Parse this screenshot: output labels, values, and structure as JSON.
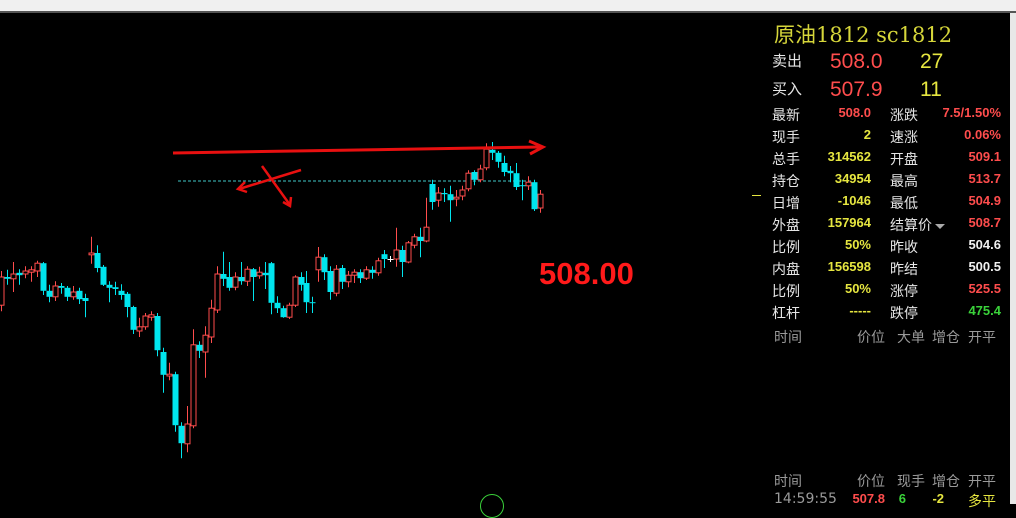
{
  "colors": {
    "up": "#ff4d4d",
    "down": "#00e5ee",
    "neutral": "#ffffff",
    "annotation": "#e81010",
    "dashed": "#40c8c8"
  },
  "chart": {
    "current_price_label": "508.00",
    "reference_price": 508.0,
    "candles_ohlc": [
      [
        487.3,
        493.0,
        486.3,
        492.0
      ],
      [
        492.0,
        493.2,
        490.7,
        491.7
      ],
      [
        491.7,
        494.5,
        489.5,
        492.5
      ],
      [
        492.7,
        493.3,
        490.7,
        492.3
      ],
      [
        492.5,
        493.8,
        491.8,
        493.0
      ],
      [
        492.8,
        493.8,
        491.2,
        493.2
      ],
      [
        493.0,
        494.7,
        492.0,
        494.3
      ],
      [
        494.3,
        494.5,
        489.0,
        489.7
      ],
      [
        489.7,
        490.7,
        487.8,
        488.7
      ],
      [
        488.7,
        491.3,
        488.0,
        490.5
      ],
      [
        490.5,
        491.0,
        489.2,
        490.2
      ],
      [
        490.2,
        490.5,
        488.0,
        488.7
      ],
      [
        488.7,
        490.5,
        488.2,
        489.5
      ],
      [
        489.7,
        490.2,
        487.5,
        488.3
      ],
      [
        488.5,
        489.2,
        485.3,
        488.0
      ],
      [
        495.7,
        498.7,
        494.2,
        496.0
      ],
      [
        496.0,
        497.3,
        492.8,
        493.5
      ],
      [
        493.7,
        494.0,
        490.5,
        490.7
      ],
      [
        490.7,
        491.3,
        487.8,
        490.2
      ],
      [
        490.3,
        491.2,
        489.0,
        490.0
      ],
      [
        489.7,
        490.8,
        488.2,
        489.0
      ],
      [
        489.2,
        489.5,
        485.3,
        487.0
      ],
      [
        487.0,
        487.2,
        482.5,
        483.2
      ],
      [
        483.0,
        485.2,
        482.0,
        483.7
      ],
      [
        483.7,
        486.0,
        483.2,
        485.5
      ],
      [
        485.3,
        486.3,
        484.7,
        485.7
      ],
      [
        485.5,
        486.0,
        478.8,
        479.8
      ],
      [
        479.5,
        480.2,
        472.7,
        475.7
      ],
      [
        475.5,
        477.7,
        474.8,
        475.8
      ],
      [
        475.8,
        476.2,
        466.2,
        467.3
      ],
      [
        467.2,
        467.8,
        461.8,
        464.3
      ],
      [
        464.2,
        470.5,
        462.8,
        467.5
      ],
      [
        467.2,
        483.3,
        466.8,
        480.7
      ],
      [
        480.7,
        481.3,
        478.5,
        479.7
      ],
      [
        479.5,
        483.8,
        475.2,
        482.3
      ],
      [
        482.0,
        488.2,
        481.0,
        486.8
      ],
      [
        486.5,
        493.8,
        486.0,
        492.5
      ],
      [
        492.5,
        496.2,
        490.5,
        491.7
      ],
      [
        492.0,
        494.5,
        489.7,
        490.2
      ],
      [
        490.3,
        492.8,
        489.8,
        492.0
      ],
      [
        492.0,
        494.5,
        490.7,
        491.3
      ],
      [
        491.3,
        493.8,
        490.5,
        493.3
      ],
      [
        493.3,
        493.5,
        488.0,
        492.0
      ],
      [
        492.2,
        493.7,
        491.7,
        492.8
      ],
      [
        492.7,
        494.5,
        490.0,
        492.3
      ],
      [
        494.3,
        494.5,
        485.8,
        487.7
      ],
      [
        487.7,
        488.8,
        486.0,
        486.8
      ],
      [
        486.8,
        487.2,
        485.2,
        485.3
      ],
      [
        485.3,
        487.7,
        485.0,
        487.3
      ],
      [
        487.3,
        492.3,
        487.0,
        492.0
      ],
      [
        492.0,
        492.8,
        489.7,
        490.7
      ],
      [
        491.0,
        493.0,
        486.0,
        487.8
      ],
      [
        487.8,
        488.7,
        486.0,
        487.7
      ],
      [
        493.2,
        497.0,
        491.2,
        495.3
      ],
      [
        495.3,
        495.8,
        491.5,
        492.8
      ],
      [
        493.0,
        493.8,
        488.2,
        489.5
      ],
      [
        489.3,
        494.0,
        488.8,
        493.3
      ],
      [
        493.5,
        494.0,
        490.0,
        491.2
      ],
      [
        491.2,
        493.0,
        490.3,
        492.3
      ],
      [
        492.3,
        493.3,
        491.0,
        492.8
      ],
      [
        492.8,
        493.3,
        491.0,
        491.8
      ],
      [
        491.8,
        493.8,
        491.5,
        493.2
      ],
      [
        493.2,
        493.8,
        491.7,
        492.7
      ],
      [
        492.7,
        495.2,
        492.2,
        494.7
      ],
      [
        495.8,
        496.5,
        493.5,
        495.0
      ],
      [
        495.0,
        495.5,
        494.5,
        495.0
      ],
      [
        495.0,
        500.2,
        493.7,
        496.5
      ],
      [
        496.5,
        497.2,
        492.0,
        494.5
      ],
      [
        494.5,
        498.0,
        494.3,
        497.7
      ],
      [
        497.3,
        499.2,
        496.8,
        498.7
      ],
      [
        498.7,
        500.2,
        495.3,
        498.0
      ],
      [
        498.0,
        505.2,
        497.8,
        500.3
      ],
      [
        507.5,
        508.2,
        503.2,
        504.5
      ],
      [
        504.8,
        507.0,
        503.7,
        506.0
      ],
      [
        506.0,
        506.8,
        504.5,
        505.8
      ],
      [
        505.8,
        507.2,
        501.2,
        504.8
      ],
      [
        505.0,
        506.5,
        503.8,
        505.3
      ],
      [
        505.5,
        507.2,
        504.8,
        506.5
      ],
      [
        506.7,
        509.8,
        506.3,
        509.3
      ],
      [
        509.5,
        509.8,
        507.3,
        508.2
      ],
      [
        508.2,
        510.7,
        507.8,
        510.0
      ],
      [
        510.2,
        514.3,
        509.8,
        513.3
      ],
      [
        513.2,
        514.5,
        511.5,
        512.7
      ],
      [
        512.7,
        513.0,
        510.2,
        511.2
      ],
      [
        511.0,
        512.2,
        508.8,
        509.5
      ],
      [
        509.7,
        510.5,
        507.8,
        509.3
      ],
      [
        509.3,
        511.0,
        506.5,
        507.0
      ],
      [
        507.3,
        508.2,
        504.8,
        507.2
      ],
      [
        507.2,
        508.8,
        506.5,
        507.8
      ],
      [
        507.8,
        508.2,
        503.0,
        503.3
      ],
      [
        503.5,
        506.5,
        502.7,
        505.8
      ]
    ]
  },
  "quote": {
    "title": "原油1812  sc1812",
    "ask": {
      "label": "卖出",
      "price": "508.0",
      "volume": "27"
    },
    "bid": {
      "label": "买入",
      "price": "507.9",
      "volume": "11"
    },
    "rows": [
      {
        "l1": "最新",
        "v1": "508.0",
        "c1": "red",
        "l2": "涨跌",
        "v2": "7.5/1.50%",
        "c2": "red"
      },
      {
        "l1": "现手",
        "v1": "2",
        "c1": "yel",
        "l2": "速涨",
        "v2": "0.06%",
        "c2": "red"
      },
      {
        "l1": "总手",
        "v1": "314562",
        "c1": "yel",
        "l2": "开盘",
        "v2": "509.1",
        "c2": "red"
      },
      {
        "l1": "持仓",
        "v1": "34954",
        "c1": "yel",
        "l2": "最高",
        "v2": "513.7",
        "c2": "red"
      },
      {
        "l1": "日增",
        "v1": "-1046",
        "c1": "yel",
        "l2": "最低",
        "v2": "504.9",
        "c2": "red"
      },
      {
        "l1": "外盘",
        "v1": "157964",
        "c1": "yel",
        "l2": "结算价",
        "v2": "508.7",
        "c2": "red"
      },
      {
        "l1": "比例",
        "v1": "50%",
        "c1": "yel",
        "l2": "昨收",
        "v2": "504.6",
        "c2": "wht"
      },
      {
        "l1": "内盘",
        "v1": "156598",
        "c1": "yel",
        "l2": "昨结",
        "v2": "500.5",
        "c2": "wht"
      },
      {
        "l1": "比例",
        "v1": "50%",
        "c1": "yel",
        "l2": "涨停",
        "v2": "525.5",
        "c2": "red"
      },
      {
        "l1": "杠杆",
        "v1": "-----",
        "c1": "yel",
        "l2": "跌停",
        "v2": "475.4",
        "c2": "grn"
      }
    ],
    "big_orders_header": [
      "时间",
      "价位",
      "大单",
      "增仓",
      "开平"
    ],
    "ticks_header": [
      "时间",
      "价位",
      "现手",
      "增仓",
      "开平"
    ],
    "ticks": [
      {
        "time": "14:59:55",
        "price": "507.8",
        "volume": "6",
        "oi_change": "-2",
        "type": "多平"
      }
    ]
  }
}
